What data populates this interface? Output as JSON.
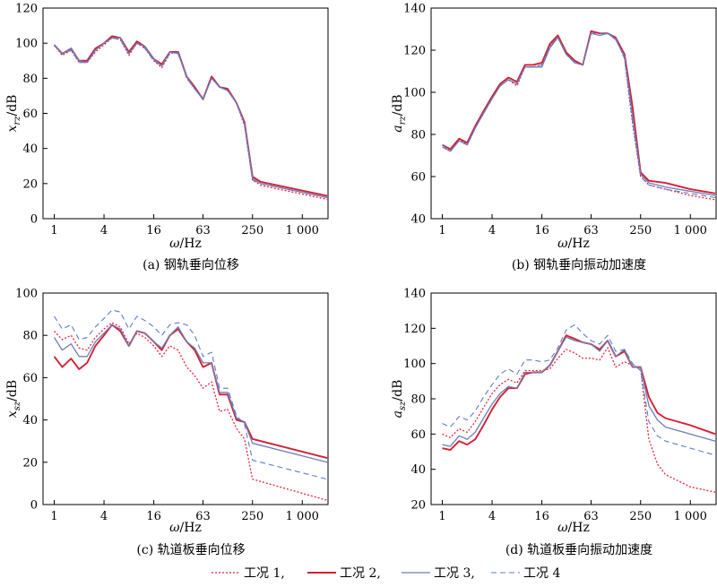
{
  "chart_data": [
    {
      "type": "line",
      "panel": "a",
      "caption": "(a)  钢轨垂向位移",
      "ylabel_main": "x",
      "ylabel_sub": "rz",
      "ylabel_unit": "/dB",
      "xlabel_main": "ω",
      "xlabel_unit": "/Hz",
      "xscale": "log2",
      "ylim": [
        0,
        120
      ],
      "yticks": [
        0,
        20,
        40,
        60,
        80,
        100,
        120
      ],
      "xticks": [
        1,
        4,
        16,
        63,
        250,
        1000
      ],
      "xtick_labels": [
        "1",
        "4",
        "16",
        "63",
        "250",
        "1 000"
      ],
      "x": [
        1,
        1.25,
        1.6,
        2,
        2.5,
        3.15,
        4,
        5,
        6.3,
        8,
        10,
        12.5,
        16,
        20,
        25,
        31.5,
        40,
        50,
        63,
        80,
        100,
        125,
        160,
        200,
        250,
        315,
        500,
        1000,
        2000
      ],
      "series": [
        {
          "name": "工况 1",
          "values": [
            99,
            93,
            96,
            89,
            89,
            95,
            99,
            103,
            102,
            93,
            100,
            97,
            90,
            86,
            94,
            95,
            80,
            74,
            68,
            80,
            75,
            73,
            66,
            53,
            22,
            19,
            17,
            14,
            11
          ]
        },
        {
          "name": "工况 2",
          "values": [
            99,
            94,
            97,
            90,
            90,
            97,
            100,
            104,
            103,
            95,
            101,
            98,
            91,
            88,
            95,
            95,
            81,
            75,
            68,
            81,
            75,
            74,
            66,
            55,
            24,
            21,
            19,
            16,
            13
          ]
        },
        {
          "name": "工况 3",
          "values": [
            99,
            94,
            97,
            90,
            89,
            96,
            100,
            103,
            103,
            94,
            100,
            98,
            91,
            87,
            95,
            94,
            81,
            74,
            68,
            80,
            75,
            73,
            66,
            54,
            23,
            20,
            18,
            15,
            12
          ]
        },
        {
          "name": "工况 4",
          "values": [
            99,
            94,
            96,
            89,
            89,
            96,
            100,
            103,
            102,
            94,
            100,
            97,
            90,
            87,
            94,
            95,
            80,
            74,
            68,
            80,
            75,
            73,
            66,
            54,
            22,
            20,
            18,
            15,
            12
          ]
        }
      ]
    },
    {
      "type": "line",
      "panel": "b",
      "caption": "(b)  钢轨垂向振动加速度",
      "ylabel_main": "a",
      "ylabel_sub": "rz",
      "ylabel_unit": "/dB",
      "xlabel_main": "ω",
      "xlabel_unit": "/Hz",
      "xscale": "log2",
      "ylim": [
        40,
        140
      ],
      "yticks": [
        40,
        60,
        80,
        100,
        120,
        140
      ],
      "xticks": [
        1,
        4,
        16,
        63,
        250,
        1000
      ],
      "xtick_labels": [
        "1",
        "4",
        "16",
        "63",
        "250",
        "1 000"
      ],
      "x": [
        1,
        1.25,
        1.6,
        2,
        2.5,
        3.15,
        4,
        5,
        6.3,
        8,
        10,
        12.5,
        16,
        20,
        25,
        31.5,
        40,
        50,
        63,
        80,
        100,
        125,
        160,
        200,
        250,
        315,
        500,
        1000,
        2000
      ],
      "series": [
        {
          "name": "工况 1",
          "values": [
            75,
            72,
            78,
            75,
            83,
            90,
            97,
            103,
            106,
            103,
            112,
            112,
            113,
            122,
            126,
            118,
            115,
            113,
            129,
            128,
            128,
            126,
            116,
            85,
            60,
            56,
            54,
            51,
            49
          ]
        },
        {
          "name": "工况 2",
          "values": [
            75,
            73,
            78,
            76,
            84,
            91,
            98,
            104,
            107,
            105,
            113,
            113,
            114,
            123,
            127,
            119,
            115,
            113,
            129,
            128,
            128,
            126,
            118,
            93,
            62,
            58,
            57,
            54,
            52
          ]
        },
        {
          "name": "工况 3",
          "values": [
            74,
            72,
            77,
            75,
            83,
            90,
            97,
            103,
            106,
            104,
            112,
            112,
            112,
            121,
            126,
            118,
            114,
            113,
            128,
            127,
            128,
            125,
            117,
            89,
            61,
            57,
            55,
            53,
            51
          ]
        },
        {
          "name": "工况 4",
          "values": [
            75,
            72,
            77,
            75,
            83,
            90,
            97,
            103,
            106,
            104,
            112,
            112,
            113,
            122,
            126,
            118,
            114,
            113,
            128,
            128,
            128,
            126,
            116,
            86,
            60,
            56,
            54,
            52,
            50
          ]
        }
      ]
    },
    {
      "type": "line",
      "panel": "c",
      "caption": "(c)  轨道板垂向位移",
      "ylabel_main": "x",
      "ylabel_sub": "sz",
      "ylabel_unit": "/dB",
      "xlabel_main": "ω",
      "xlabel_unit": "/Hz",
      "xscale": "log2",
      "ylim": [
        0,
        100
      ],
      "yticks": [
        0,
        20,
        40,
        60,
        80,
        100
      ],
      "xticks": [
        1,
        4,
        16,
        63,
        250,
        1000
      ],
      "xtick_labels": [
        "1",
        "4",
        "16",
        "63",
        "250",
        "1 000"
      ],
      "x": [
        1,
        1.25,
        1.6,
        2,
        2.5,
        3.15,
        4,
        5,
        6.3,
        8,
        10,
        12.5,
        16,
        20,
        25,
        31.5,
        40,
        50,
        63,
        80,
        100,
        125,
        160,
        200,
        250,
        2000
      ],
      "series": [
        {
          "name": "工况 1",
          "values": [
            82,
            78,
            80,
            74,
            73,
            79,
            83,
            86,
            84,
            76,
            81,
            79,
            75,
            70,
            75,
            73,
            65,
            61,
            55,
            58,
            44,
            45,
            36,
            31,
            12,
            2
          ]
        },
        {
          "name": "工况 2",
          "values": [
            70,
            65,
            69,
            64,
            67,
            75,
            80,
            85,
            82,
            75,
            82,
            81,
            77,
            73,
            80,
            83,
            77,
            73,
            65,
            67,
            52,
            52,
            40,
            39,
            31,
            22
          ]
        },
        {
          "name": "工况 3",
          "values": [
            79,
            73,
            76,
            70,
            70,
            77,
            81,
            85,
            83,
            75,
            82,
            81,
            77,
            74,
            80,
            84,
            77,
            74,
            67,
            67,
            53,
            53,
            41,
            39,
            29,
            20
          ]
        },
        {
          "name": "工况 4",
          "values": [
            89,
            83,
            85,
            78,
            79,
            84,
            88,
            92,
            91,
            83,
            89,
            87,
            84,
            80,
            85,
            86,
            85,
            80,
            70,
            72,
            55,
            55,
            42,
            38,
            21,
            12
          ]
        }
      ]
    },
    {
      "type": "line",
      "panel": "d",
      "caption": "(d)  轨道板垂向振动加速度",
      "ylabel_main": "a",
      "ylabel_sub": "sz",
      "ylabel_unit": "/dB",
      "xlabel_main": "ω",
      "xlabel_unit": "/Hz",
      "xscale": "log2",
      "ylim": [
        20,
        140
      ],
      "yticks": [
        20,
        40,
        60,
        80,
        100,
        120,
        140
      ],
      "xticks": [
        1,
        4,
        16,
        63,
        250,
        1000
      ],
      "xtick_labels": [
        "1",
        "4",
        "16",
        "63",
        "250",
        "1 000"
      ],
      "x": [
        1,
        1.25,
        1.6,
        2,
        2.5,
        3.15,
        4,
        5,
        6.3,
        8,
        10,
        12.5,
        16,
        20,
        25,
        31.5,
        40,
        50,
        63,
        80,
        100,
        125,
        160,
        200,
        250,
        315,
        400,
        500,
        1000,
        2000
      ],
      "series": [
        {
          "name": "工况 1",
          "values": [
            60,
            58,
            63,
            61,
            67,
            75,
            83,
            88,
            91,
            89,
            96,
            96,
            96,
            97,
            103,
            108,
            106,
            103,
            103,
            102,
            109,
            98,
            101,
            99,
            97,
            57,
            43,
            37,
            30,
            27
          ]
        },
        {
          "name": "工况 2",
          "values": [
            52,
            51,
            56,
            54,
            57,
            65,
            74,
            81,
            86,
            86,
            94,
            95,
            95,
            99,
            107,
            116,
            114,
            112,
            111,
            108,
            113,
            104,
            107,
            98,
            98,
            81,
            72,
            69,
            65,
            60
          ]
        },
        {
          "name": "工况 3",
          "values": [
            54,
            53,
            59,
            57,
            61,
            69,
            77,
            83,
            87,
            86,
            95,
            95,
            95,
            99,
            107,
            115,
            113,
            112,
            111,
            107,
            113,
            104,
            108,
            98,
            98,
            76,
            68,
            64,
            60,
            56
          ]
        },
        {
          "name": "工况 4",
          "values": [
            66,
            64,
            70,
            68,
            73,
            81,
            88,
            94,
            97,
            94,
            102,
            102,
            101,
            102,
            109,
            119,
            122,
            117,
            113,
            111,
            116,
            107,
            108,
            100,
            96,
            67,
            59,
            56,
            52,
            48
          ]
        }
      ]
    }
  ],
  "legend": {
    "items": [
      {
        "label": "工况 1,",
        "color": "#e8243a",
        "style": "dotted"
      },
      {
        "label": "工况 2,",
        "color": "#d42034",
        "style": "solid"
      },
      {
        "label": "工况 3,",
        "color": "#6c7fb6",
        "style": "solid"
      },
      {
        "label": "工况 4",
        "color": "#5f7cc8",
        "style": "dashed"
      }
    ]
  },
  "series_styles": [
    {
      "color": "#e8243a",
      "dash": "2,2",
      "width": 1.3
    },
    {
      "color": "#d42034",
      "dash": "",
      "width": 1.9
    },
    {
      "color": "#6c7fb6",
      "dash": "",
      "width": 1.3
    },
    {
      "color": "#5f7cc8",
      "dash": "6,4",
      "width": 1.1
    }
  ]
}
